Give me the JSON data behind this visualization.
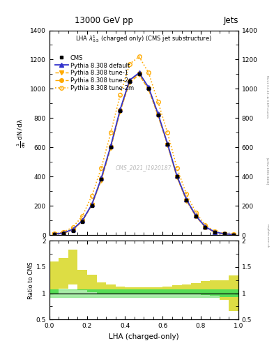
{
  "title_top": "13000 GeV pp",
  "title_right": "Jets",
  "plot_title": "LHA $\\lambda^{1}_{0.5}$ (charged only) (CMS jet substructure)",
  "watermark": "CMS_2021_I1920187",
  "rivet_text": "Rivet 3.1.10, ≥ 3.1M events",
  "arxiv_text": "[arXiv:1306.3436]",
  "mcplots_text": "mcplots.cern.ch",
  "xlabel": "LHA (charged-only)",
  "ylim": [
    0,
    1400
  ],
  "xlim": [
    0,
    1
  ],
  "ratio_ylim": [
    0.5,
    2.0
  ],
  "lha_bins": [
    0.0,
    0.05,
    0.1,
    0.15,
    0.2,
    0.25,
    0.3,
    0.35,
    0.4,
    0.45,
    0.5,
    0.55,
    0.6,
    0.65,
    0.7,
    0.75,
    0.8,
    0.85,
    0.9,
    0.95,
    1.0
  ],
  "cms_data": [
    5,
    12,
    30,
    90,
    200,
    380,
    600,
    850,
    1050,
    1100,
    1000,
    820,
    620,
    400,
    240,
    130,
    55,
    20,
    8,
    3
  ],
  "pythia_default": [
    6,
    15,
    40,
    100,
    210,
    390,
    610,
    860,
    1060,
    1110,
    1010,
    830,
    625,
    405,
    245,
    132,
    57,
    21,
    9,
    3
  ],
  "pythia_tune1": [
    5,
    13,
    35,
    95,
    205,
    375,
    595,
    845,
    1045,
    1095,
    995,
    815,
    615,
    395,
    235,
    128,
    53,
    19,
    7,
    2
  ],
  "pythia_tune2c": [
    6,
    14,
    38,
    98,
    208,
    385,
    605,
    855,
    1055,
    1105,
    1005,
    825,
    620,
    400,
    240,
    130,
    55,
    20,
    8,
    3
  ],
  "pythia_tune2m": [
    8,
    20,
    55,
    130,
    270,
    460,
    700,
    960,
    1170,
    1220,
    1110,
    910,
    700,
    460,
    280,
    155,
    68,
    25,
    10,
    4
  ],
  "cms_ratio_lo_yellow": 0.75,
  "cms_ratio_hi_yellow": 1.25,
  "cms_ratio_lo_green": 0.93,
  "cms_ratio_hi_green": 1.07,
  "color_blue": "#3333cc",
  "color_orange": "#ffaa00",
  "color_black": "#000000",
  "color_green": "#55dd55",
  "color_yellow": "#dddd44",
  "yticks": [
    0,
    200,
    400,
    600,
    800,
    1000,
    1200,
    1400
  ],
  "ratio_yticks": [
    0.5,
    1.0,
    1.5,
    2.0
  ],
  "ratio_ytick_labels": [
    "0.5",
    "1",
    "1.5",
    "2"
  ]
}
